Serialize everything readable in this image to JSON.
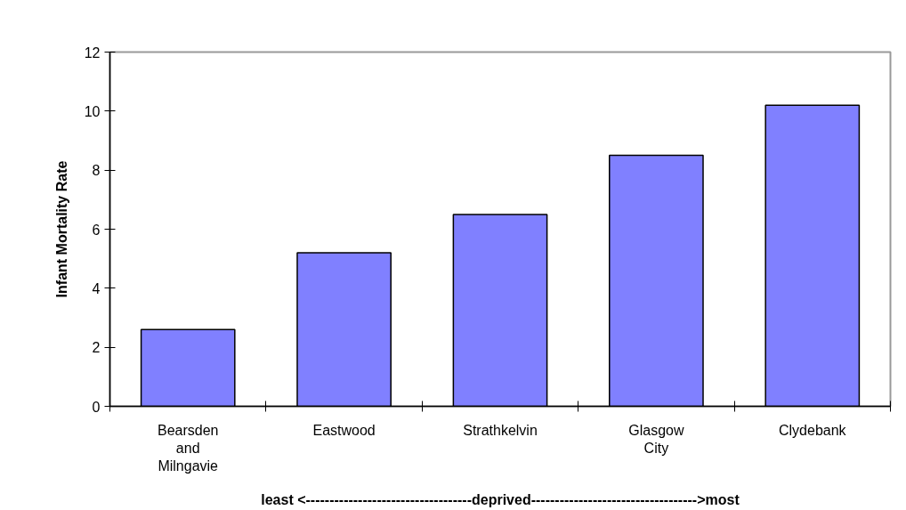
{
  "chart_data": {
    "type": "bar",
    "categories": [
      "Bearsden and Milngavie",
      "Eastwood",
      "Strathkelvin",
      "Glasgow City",
      "Clydebank"
    ],
    "values": [
      2.6,
      5.2,
      6.5,
      8.5,
      10.2
    ],
    "color": "#8080ff",
    "ylabel": "Infant Mortality Rate",
    "xlabel": "least <-----------------------------------deprived----------------------------------->most",
    "ylim": [
      0,
      12
    ],
    "yticks": [
      0,
      2,
      4,
      6,
      8,
      10,
      12
    ],
    "grid": false
  }
}
